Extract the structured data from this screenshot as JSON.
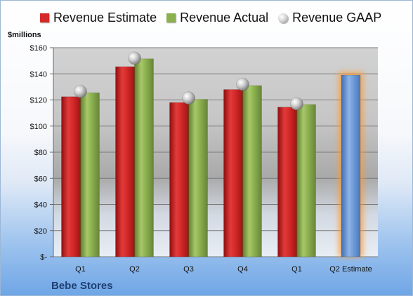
{
  "chart_data": {
    "type": "bar",
    "ylabel": "$millions",
    "company": "Bebe Stores",
    "categories": [
      "Q1",
      "Q2",
      "Q3",
      "Q4",
      "Q1",
      "Q2 Estimate"
    ],
    "series": [
      {
        "name": "Revenue Estimate",
        "values": [
          122.5,
          145.5,
          118,
          128,
          114.5,
          null
        ],
        "color": "#d42a2a"
      },
      {
        "name": "Revenue Actual",
        "values": [
          125.5,
          151.5,
          120.5,
          131,
          116.5,
          null
        ],
        "color": "#8cb04e"
      },
      {
        "name": "Revenue GAAP",
        "values": [
          126.5,
          152,
          121.5,
          132,
          117,
          null
        ],
        "color": "#b8b8b8"
      },
      {
        "name": "",
        "values": [
          null,
          null,
          null,
          null,
          null,
          139
        ],
        "color": "#6e9ad6"
      }
    ],
    "ylim": [
      0,
      160
    ],
    "yticks": [
      0,
      20,
      40,
      60,
      80,
      100,
      120,
      140,
      160
    ],
    "ytick_labels": [
      "$-",
      "$20",
      "$40",
      "$60",
      "$80",
      "$100",
      "$120",
      "$140",
      "$160"
    ],
    "legend_position": "top",
    "grid": true
  }
}
